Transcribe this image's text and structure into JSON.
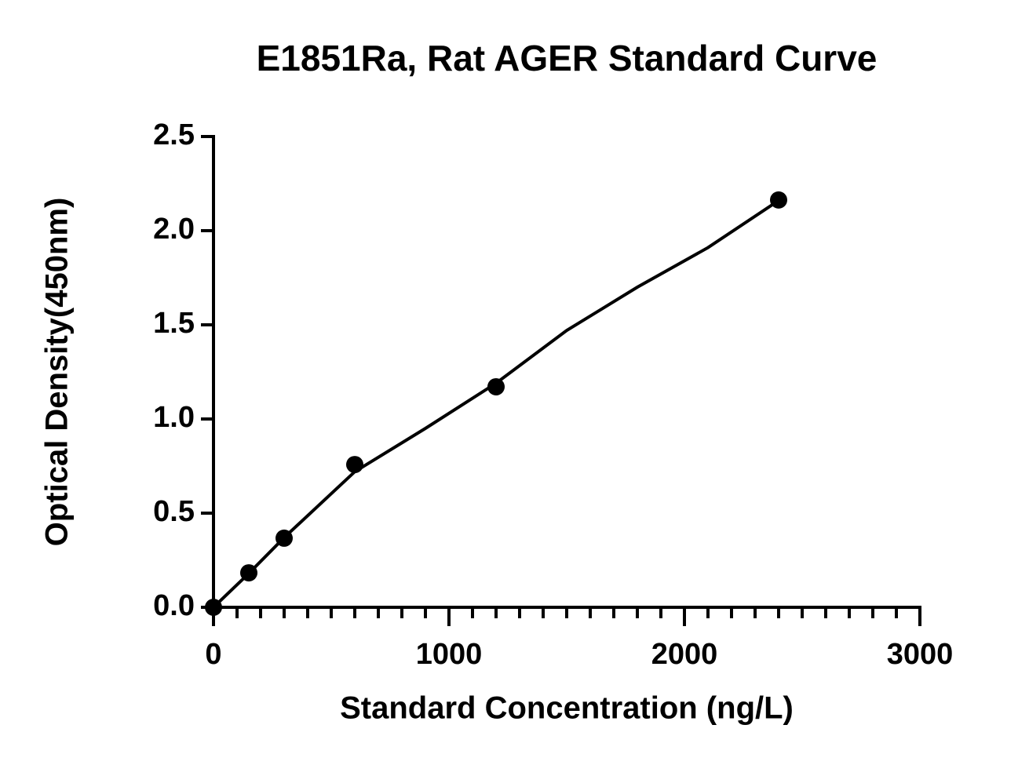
{
  "chart_data": {
    "type": "scatter",
    "title": "E1851Ra, Rat AGER Standard Curve",
    "x_label": "Standard Concentration (ng/L)",
    "y_label": "Optical Density(450nm)",
    "x": [
      0,
      150,
      300,
      600,
      1200,
      2400
    ],
    "values": [
      0,
      0.183,
      0.367,
      0.758,
      1.171,
      2.163
    ],
    "color": "#000000",
    "fit": {
      "x": [
        0,
        150,
        300,
        600,
        900,
        1200,
        1500,
        1800,
        2100,
        2400
      ],
      "values": [
        0,
        0.18,
        0.37,
        0.72,
        0.95,
        1.19,
        1.47,
        1.7,
        1.91,
        2.16
      ]
    },
    "xlim": [
      0,
      3000
    ],
    "xticks": [
      0,
      1000,
      2000,
      3000
    ],
    "xminorticks": [
      100,
      200,
      300,
      400,
      500,
      600,
      700,
      800,
      900,
      1100,
      1200,
      1300,
      1400,
      1500,
      1600,
      1700,
      1800,
      1900,
      2100,
      2200,
      2300,
      2400,
      2500,
      2600,
      2700,
      2800,
      2900
    ],
    "ylim": [
      0,
      2.5
    ],
    "yticks": [
      {
        "value": 0,
        "label": "0.0"
      },
      0.5,
      {
        "value": 1,
        "label": "1.0"
      },
      1.5,
      {
        "value": 2,
        "label": "2.0"
      },
      2.5
    ],
    "grid": false
  }
}
